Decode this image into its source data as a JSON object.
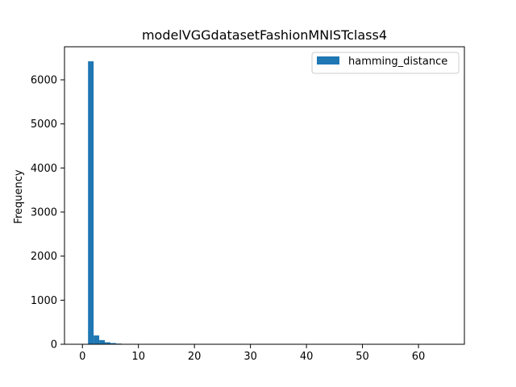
{
  "chart_data": {
    "type": "bar",
    "title": "modelVGGdatasetFashionMNISTclass4",
    "xlabel": "",
    "ylabel": "Frequency",
    "xlim": [
      -3.2,
      68.2
    ],
    "ylim": [
      0,
      6750
    ],
    "bin_width": 1.0,
    "bin_start": 1.0,
    "bins": [
      {
        "x": 1,
        "count": 6420
      },
      {
        "x": 2,
        "count": 200
      },
      {
        "x": 3,
        "count": 95
      },
      {
        "x": 4,
        "count": 45
      },
      {
        "x": 5,
        "count": 28
      },
      {
        "x": 6,
        "count": 15
      },
      {
        "x": 7,
        "count": 8
      },
      {
        "x": 8,
        "count": 4
      },
      {
        "x": 9,
        "count": 2
      },
      {
        "x": 10,
        "count": 1
      }
    ],
    "x_ticks": [
      0,
      10,
      20,
      30,
      40,
      50,
      60
    ],
    "y_ticks": [
      0,
      1000,
      2000,
      3000,
      4000,
      5000,
      6000
    ],
    "series": [
      {
        "name": "hamming_distance",
        "color": "#1f77b4"
      }
    ],
    "legend": "top-right",
    "grid": false
  }
}
